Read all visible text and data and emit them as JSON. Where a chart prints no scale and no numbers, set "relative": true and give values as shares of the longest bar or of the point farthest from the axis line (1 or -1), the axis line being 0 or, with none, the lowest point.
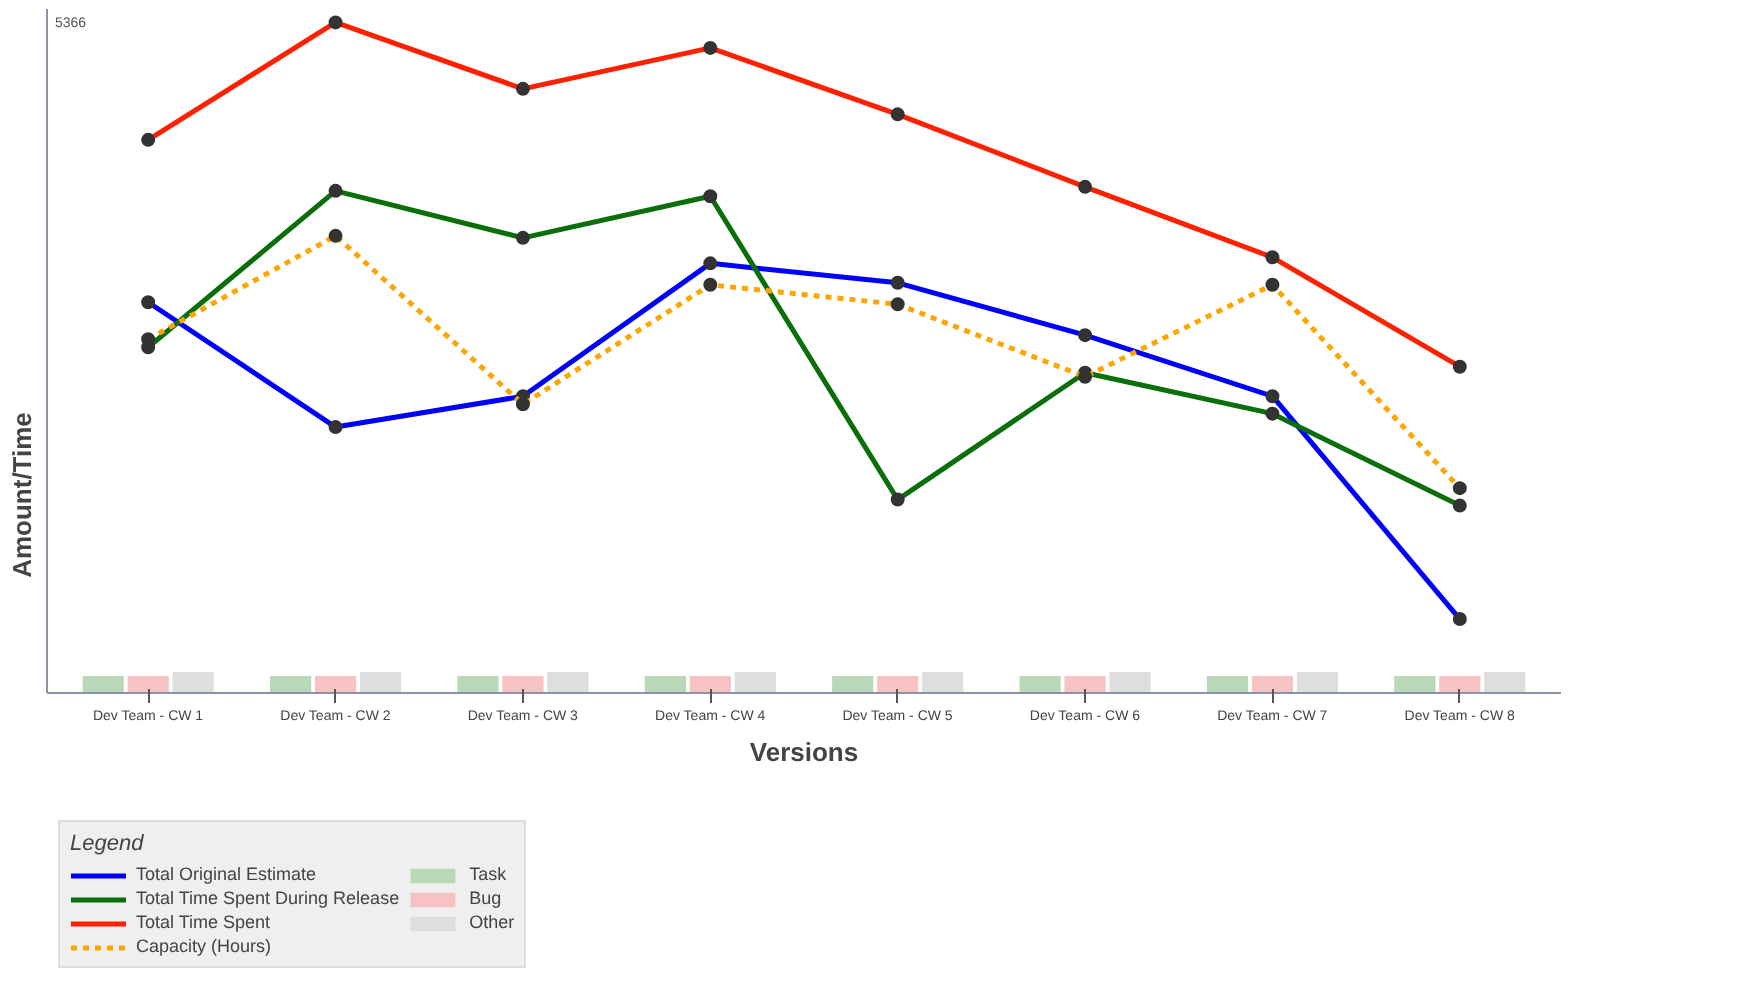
{
  "chart_data": {
    "type": "line",
    "xlabel": "Versions",
    "ylabel": "Amount/Time",
    "legend_title": "Legend",
    "legend": "bottom left",
    "relative": true,
    "marker": "circle",
    "annotations": [
      "5366"
    ],
    "categories": [
      "Dev Team - CW 1",
      "Dev Team - CW 2",
      "Dev Team - CW 3",
      "Dev Team - CW 4",
      "Dev Team - CW 5",
      "Dev Team - CW 6",
      "Dev Team - CW 7",
      "Dev Team - CW 8"
    ],
    "series": [
      {
        "name": "Total Original Estimate",
        "color": "#0000ff",
        "values": [
          0.583,
          0.397,
          0.443,
          0.641,
          0.612,
          0.534,
          0.443,
          0.111
        ]
      },
      {
        "name": "Total Time Spent During Release",
        "color": "#0a6e0a",
        "values": [
          0.516,
          0.749,
          0.679,
          0.741,
          0.289,
          0.478,
          0.417,
          0.28
        ]
      },
      {
        "name": "Total Time Spent",
        "color": "#ff2000",
        "values": [
          0.825,
          1,
          0.901,
          0.962,
          0.863,
          0.755,
          0.65,
          0.487
        ]
      },
      {
        "name": "Capacity (Hours)",
        "color": "#ffa500",
        "line_style": "dotted",
        "values": [
          0.528,
          0.682,
          0.431,
          0.609,
          0.58,
          0.472,
          0.609,
          0.306
        ]
      },
      {
        "name": "Task",
        "type": "bar",
        "color": "#b8d8b8",
        "values": [
          0.026,
          0.026,
          0.026,
          0.026,
          0.026,
          0.026,
          0.026,
          0.026
        ]
      },
      {
        "name": "Bug",
        "type": "bar",
        "color": "#f6c2c2",
        "values": [
          0.026,
          0.026,
          0.026,
          0.026,
          0.026,
          0.026,
          0.026,
          0.026
        ]
      },
      {
        "name": "Other",
        "type": "bar",
        "color": "#dedede",
        "values": [
          0.032,
          0.032,
          0.032,
          0.032,
          0.032,
          0.032,
          0.032,
          0.032
        ]
      }
    ]
  }
}
